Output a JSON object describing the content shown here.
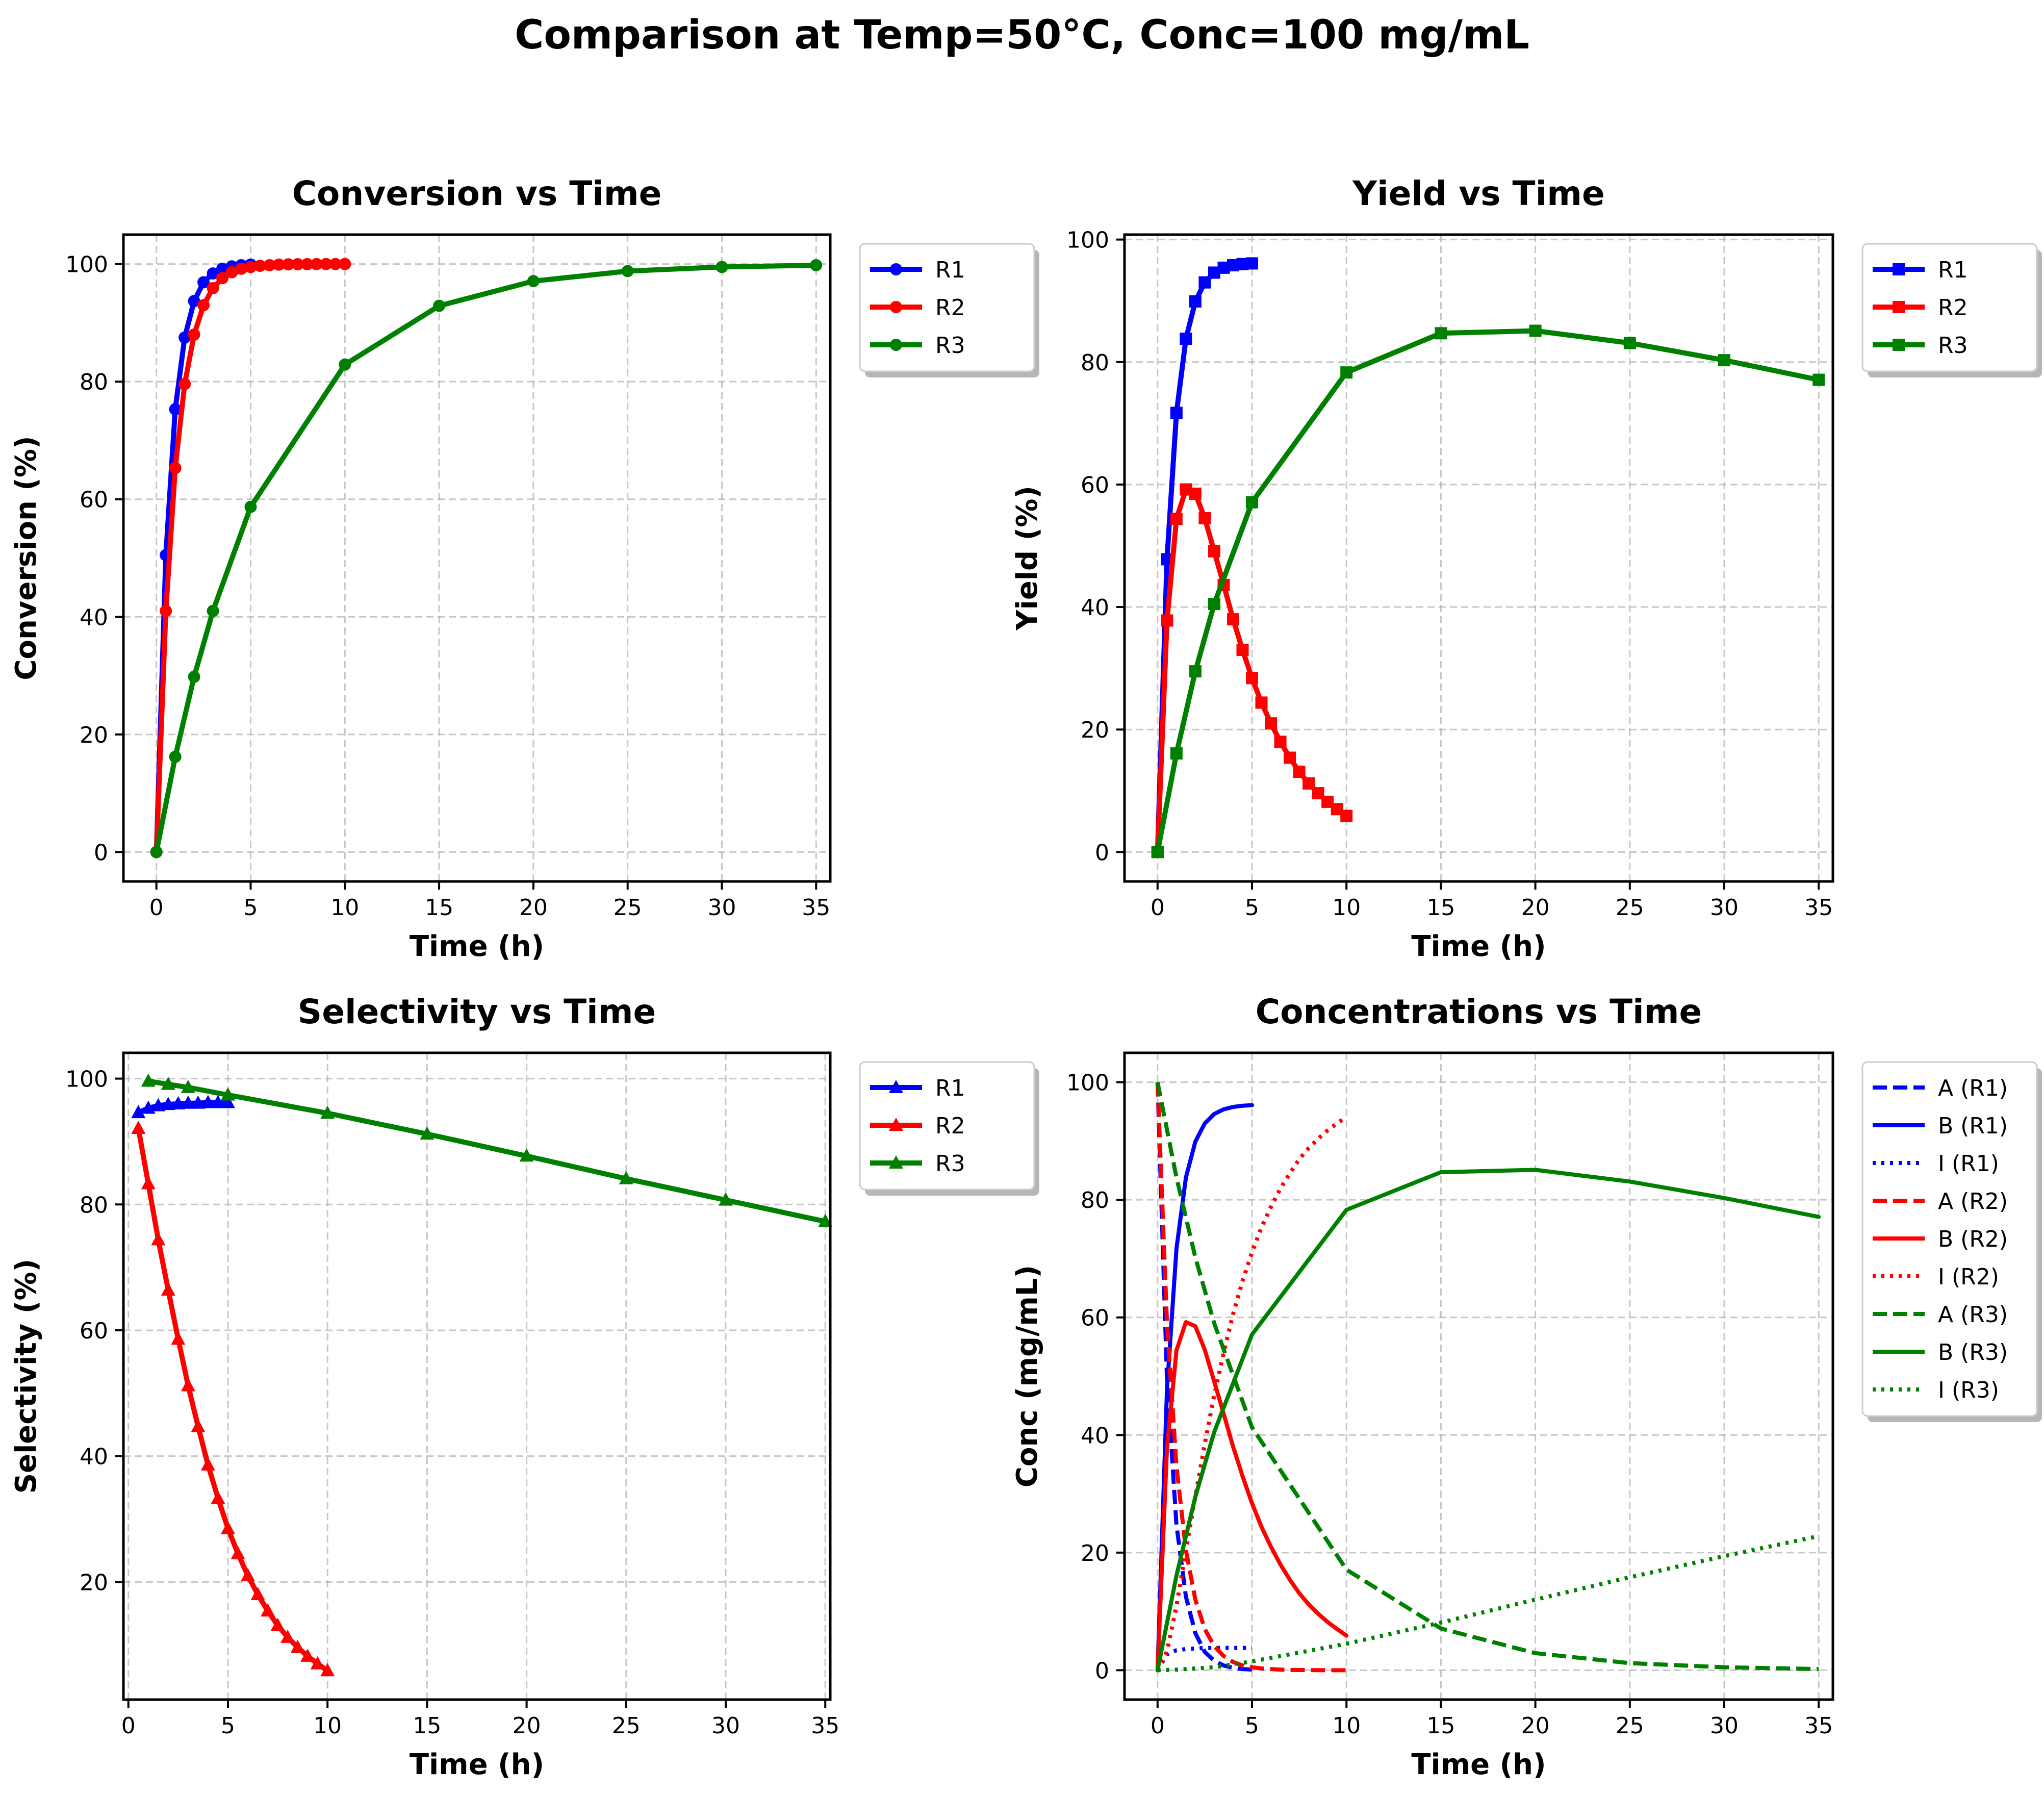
{
  "suptitle": "Comparison at Temp=50°C, Conc=100 mg/mL",
  "chart_data": [
    {
      "type": "line",
      "title": "Conversion vs Time",
      "xlabel": "Time (h)",
      "ylabel": "Conversion (%)",
      "xlim": [
        -1.75,
        35.75
      ],
      "ylim": [
        -5,
        105
      ],
      "xticks": [
        0,
        5,
        10,
        15,
        20,
        25,
        30,
        35
      ],
      "yticks": [
        0,
        20,
        40,
        60,
        80,
        100
      ],
      "grid": true,
      "legend_position": "outside-right-top",
      "series": [
        {
          "name": "R1",
          "color": "#0000ff",
          "marker": "circle",
          "style": "solid",
          "x": [
            0,
            0.5,
            1,
            1.5,
            2,
            2.5,
            3,
            3.5,
            4,
            4.5,
            5
          ],
          "y": [
            0,
            50.5,
            75.3,
            87.5,
            93.7,
            96.9,
            98.4,
            99.2,
            99.6,
            99.8,
            99.9
          ]
        },
        {
          "name": "R2",
          "color": "#ff0000",
          "marker": "circle",
          "style": "solid",
          "x": [
            0,
            0.5,
            1,
            1.5,
            2,
            2.5,
            3,
            3.5,
            4,
            4.5,
            5,
            5.5,
            6,
            6.5,
            7,
            7.5,
            8,
            8.5,
            9,
            9.5,
            10
          ],
          "y": [
            0,
            41.0,
            65.3,
            79.6,
            88.0,
            93.0,
            95.9,
            97.6,
            98.6,
            99.2,
            99.5,
            99.7,
            99.8,
            99.9,
            99.95,
            99.97,
            99.98,
            99.99,
            100,
            100,
            100
          ]
        },
        {
          "name": "R3",
          "color": "#008000",
          "marker": "circle",
          "style": "solid",
          "x": [
            0,
            1,
            2,
            3,
            5,
            10,
            15,
            20,
            25,
            30,
            35
          ],
          "y": [
            0,
            16.2,
            29.8,
            41.0,
            58.7,
            82.9,
            92.9,
            97.1,
            98.8,
            99.5,
            99.8
          ]
        }
      ]
    },
    {
      "type": "line",
      "title": "Yield vs Time",
      "xlabel": "Time (h)",
      "ylabel": "Yield (%)",
      "xlim": [
        -1.75,
        35.75
      ],
      "ylim": [
        -4.8,
        100.8
      ],
      "xticks": [
        0,
        5,
        10,
        15,
        20,
        25,
        30,
        35
      ],
      "yticks": [
        0,
        20,
        40,
        60,
        80,
        100
      ],
      "grid": true,
      "legend_position": "outside-right-top",
      "series": [
        {
          "name": "R1",
          "color": "#0000ff",
          "marker": "square",
          "style": "solid",
          "x": [
            0,
            0.5,
            1,
            1.5,
            2,
            2.5,
            3,
            3.5,
            4,
            4.5,
            5
          ],
          "y": [
            0,
            47.8,
            71.7,
            83.8,
            89.9,
            93.0,
            94.6,
            95.4,
            95.8,
            96.0,
            96.1
          ]
        },
        {
          "name": "R2",
          "color": "#ff0000",
          "marker": "square",
          "style": "solid",
          "x": [
            0,
            0.5,
            1,
            1.5,
            2,
            2.5,
            3,
            3.5,
            4,
            4.5,
            5,
            5.5,
            6,
            6.5,
            7,
            7.5,
            8,
            8.5,
            9,
            9.5,
            10
          ],
          "y": [
            0,
            37.8,
            54.4,
            59.2,
            58.5,
            54.5,
            49.1,
            43.6,
            38.0,
            33.0,
            28.4,
            24.4,
            21.0,
            18.0,
            15.4,
            13.1,
            11.2,
            9.6,
            8.2,
            7.0,
            5.9
          ]
        },
        {
          "name": "R3",
          "color": "#008000",
          "marker": "square",
          "style": "solid",
          "x": [
            0,
            1,
            2,
            3,
            5,
            10,
            15,
            20,
            25,
            30,
            35
          ],
          "y": [
            0,
            16.1,
            29.5,
            40.5,
            57.1,
            78.3,
            84.7,
            85.1,
            83.1,
            80.3,
            77.1
          ]
        }
      ]
    },
    {
      "type": "line",
      "title": "Selectivity vs Time",
      "xlabel": "Time (h)",
      "ylabel": "Selectivity (%)",
      "xlim": [
        -0.25,
        35.25
      ],
      "ylim": [
        1.3,
        104.1
      ],
      "xticks": [
        0,
        5,
        10,
        15,
        20,
        25,
        30,
        35
      ],
      "yticks": [
        20,
        40,
        60,
        80,
        100
      ],
      "grid": true,
      "legend_position": "outside-right-top",
      "series": [
        {
          "name": "R1",
          "color": "#0000ff",
          "marker": "triangle",
          "style": "solid",
          "x": [
            0.5,
            1,
            1.5,
            2,
            2.5,
            3,
            3.5,
            4,
            4.5,
            5
          ],
          "y": [
            94.6,
            95.3,
            95.7,
            95.9,
            96.0,
            96.1,
            96.1,
            96.2,
            96.2,
            96.2
          ]
        },
        {
          "name": "R2",
          "color": "#ff0000",
          "marker": "triangle",
          "style": "solid",
          "x": [
            0.5,
            1,
            1.5,
            2,
            2.5,
            3,
            3.5,
            4,
            4.5,
            5,
            5.5,
            6,
            6.5,
            7,
            7.5,
            8,
            8.5,
            9,
            9.5,
            10
          ],
          "y": [
            92.1,
            83.3,
            74.4,
            66.4,
            58.6,
            51.2,
            44.7,
            38.6,
            33.3,
            28.5,
            24.5,
            21.0,
            18.0,
            15.4,
            13.1,
            11.2,
            9.6,
            8.2,
            7.0,
            5.9
          ]
        },
        {
          "name": "R3",
          "color": "#008000",
          "marker": "triangle",
          "style": "solid",
          "x": [
            1,
            2,
            3,
            5,
            10,
            15,
            20,
            25,
            30,
            35
          ],
          "y": [
            99.6,
            99.1,
            98.6,
            97.4,
            94.5,
            91.2,
            87.7,
            84.1,
            80.7,
            77.3
          ]
        }
      ]
    },
    {
      "type": "line",
      "title": "Concentrations vs Time",
      "xlabel": "Time (h)",
      "ylabel": "Conc (mg/mL)",
      "xlim": [
        -1.75,
        35.75
      ],
      "ylim": [
        -5,
        105
      ],
      "xticks": [
        0,
        5,
        10,
        15,
        20,
        25,
        30,
        35
      ],
      "yticks": [
        0,
        20,
        40,
        60,
        80,
        100
      ],
      "grid": true,
      "legend_position": "outside-right-top",
      "series": [
        {
          "name": "A (R1)",
          "color": "#0000ff",
          "marker": "none",
          "style": "dashed",
          "x": [
            0,
            0.5,
            1,
            1.5,
            2,
            2.5,
            3,
            3.5,
            4,
            4.5,
            5
          ],
          "y": [
            100,
            49.5,
            24.7,
            12.5,
            6.3,
            3.1,
            1.6,
            0.8,
            0.4,
            0.2,
            0.1
          ]
        },
        {
          "name": "B (R1)",
          "color": "#0000ff",
          "marker": "none",
          "style": "solid",
          "x": [
            0,
            0.5,
            1,
            1.5,
            2,
            2.5,
            3,
            3.5,
            4,
            4.5,
            5
          ],
          "y": [
            0,
            47.8,
            71.7,
            83.8,
            89.9,
            93.0,
            94.6,
            95.4,
            95.8,
            96.0,
            96.1
          ]
        },
        {
          "name": "I (R1)",
          "color": "#0000ff",
          "marker": "none",
          "style": "dotted",
          "x": [
            0,
            0.5,
            1,
            1.5,
            2,
            2.5,
            3,
            3.5,
            4,
            4.5,
            5
          ],
          "y": [
            0,
            2.7,
            3.4,
            3.6,
            3.7,
            3.8,
            3.8,
            3.8,
            3.8,
            3.8,
            3.8
          ]
        },
        {
          "name": "A (R2)",
          "color": "#ff0000",
          "marker": "none",
          "style": "dashed",
          "x": [
            0,
            0.5,
            1,
            1.5,
            2,
            2.5,
            3,
            3.5,
            4,
            4.5,
            5,
            5.5,
            6,
            6.5,
            7,
            7.5,
            8,
            8.5,
            9,
            9.5,
            10
          ],
          "y": [
            100,
            59.0,
            34.7,
            20.4,
            12.0,
            7.0,
            4.1,
            2.4,
            1.4,
            0.8,
            0.5,
            0.3,
            0.2,
            0.1,
            0.05,
            0.03,
            0.02,
            0.01,
            0,
            0,
            0
          ]
        },
        {
          "name": "B (R2)",
          "color": "#ff0000",
          "marker": "none",
          "style": "solid",
          "x": [
            0,
            0.5,
            1,
            1.5,
            2,
            2.5,
            3,
            3.5,
            4,
            4.5,
            5,
            5.5,
            6,
            6.5,
            7,
            7.5,
            8,
            8.5,
            9,
            9.5,
            10
          ],
          "y": [
            0,
            37.8,
            54.4,
            59.2,
            58.5,
            54.5,
            49.1,
            43.6,
            38.0,
            33.0,
            28.4,
            24.4,
            21.0,
            18.0,
            15.4,
            13.1,
            11.2,
            9.6,
            8.2,
            7.0,
            5.9
          ]
        },
        {
          "name": "I (R2)",
          "color": "#ff0000",
          "marker": "none",
          "style": "dotted",
          "x": [
            0,
            0.5,
            1,
            1.5,
            2,
            2.5,
            3,
            3.5,
            4,
            4.5,
            5,
            5.5,
            6,
            6.5,
            7,
            7.5,
            8,
            8.5,
            9,
            9.5,
            10
          ],
          "y": [
            0,
            3.2,
            10.9,
            20.4,
            29.5,
            38.5,
            46.8,
            54.0,
            60.6,
            66.2,
            71.1,
            75.3,
            78.8,
            81.9,
            84.5,
            86.9,
            88.8,
            90.4,
            91.8,
            93.0,
            94.1
          ]
        },
        {
          "name": "A (R3)",
          "color": "#008000",
          "marker": "none",
          "style": "dashed",
          "x": [
            0,
            1,
            2,
            3,
            5,
            10,
            15,
            20,
            25,
            30,
            35
          ],
          "y": [
            100,
            83.8,
            70.2,
            59.0,
            41.3,
            17.1,
            7.1,
            2.9,
            1.2,
            0.5,
            0.2
          ]
        },
        {
          "name": "B (R3)",
          "color": "#008000",
          "marker": "none",
          "style": "solid",
          "x": [
            0,
            1,
            2,
            3,
            5,
            10,
            15,
            20,
            25,
            30,
            35
          ],
          "y": [
            0,
            16.1,
            29.5,
            40.5,
            57.1,
            78.3,
            84.7,
            85.1,
            83.1,
            80.3,
            77.1
          ]
        },
        {
          "name": "I (R3)",
          "color": "#008000",
          "marker": "none",
          "style": "dotted",
          "x": [
            0,
            1,
            2,
            3,
            5,
            10,
            15,
            20,
            25,
            30,
            35
          ],
          "y": [
            0,
            0.1,
            0.3,
            0.5,
            1.5,
            4.5,
            8.1,
            12.0,
            15.8,
            19.4,
            22.8
          ]
        }
      ]
    }
  ]
}
